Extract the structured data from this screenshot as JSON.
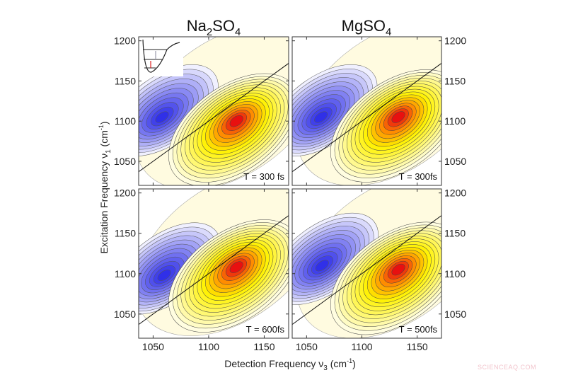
{
  "figure": {
    "xlabel": "Detection Frequency ν",
    "xlabel_sub": "3",
    "xlabel_unit": " (cm",
    "xlabel_sup": "-1",
    "xlabel_close": ")",
    "ylabel": "Excitation Frequency ν",
    "ylabel_sub": "1",
    "ylabel_unit": " (cm",
    "ylabel_sup": "-1",
    "ylabel_close": ")",
    "columns": [
      {
        "title_main": "Na",
        "title_sub": "2",
        "title_rest": "SO",
        "title_sub2": "4"
      },
      {
        "title_main": "MgSO",
        "title_sub": "4",
        "title_rest": "",
        "title_sub2": ""
      }
    ],
    "watermark": "SCIENCEAQ.COM"
  },
  "chart_data": [
    {
      "type": "contour",
      "column": "Na2SO4",
      "row": "top",
      "label": "T = 300 fs",
      "xlim": [
        1037,
        1172
      ],
      "ylim": [
        1020,
        1205
      ],
      "xticks": [
        "1050",
        "1100",
        "1150"
      ],
      "yticks": [
        "1050",
        "1100",
        "1150",
        "1200"
      ],
      "neg_peak": {
        "x": 1058,
        "y": 1105
      },
      "pos_peak": {
        "x": 1125,
        "y": 1100
      },
      "neg_levels": 11,
      "pos_levels": 16,
      "diagonal": true,
      "inset": "potential-well"
    },
    {
      "type": "contour",
      "column": "MgSO4",
      "row": "top",
      "label": "T = 300fs",
      "xlim": [
        1037,
        1172
      ],
      "ylim": [
        1020,
        1205
      ],
      "xticks": [
        "1050",
        "1100",
        "1150"
      ],
      "yticks": [
        "1050",
        "1100",
        "1150",
        "1200"
      ],
      "neg_peak": {
        "x": 1063,
        "y": 1105
      },
      "pos_peak": {
        "x": 1133,
        "y": 1105
      },
      "neg_levels": 12,
      "pos_levels": 16,
      "diagonal": true
    },
    {
      "type": "contour",
      "column": "Na2SO4",
      "row": "bottom",
      "label": "T = 600fs",
      "xlim": [
        1037,
        1172
      ],
      "ylim": [
        1020,
        1205
      ],
      "xticks": [
        "1050",
        "1100",
        "1150"
      ],
      "yticks": [
        "1050",
        "1100",
        "1150",
        "1200"
      ],
      "neg_peak": {
        "x": 1060,
        "y": 1098
      },
      "pos_peak": {
        "x": 1125,
        "y": 1108
      },
      "neg_levels": 12,
      "pos_levels": 16,
      "diagonal": true
    },
    {
      "type": "contour",
      "column": "MgSO4",
      "row": "bottom",
      "label": "T = 500fs",
      "xlim": [
        1037,
        1172
      ],
      "ylim": [
        1020,
        1205
      ],
      "xticks": [
        "1050",
        "1100",
        "1150"
      ],
      "yticks": [
        "1050",
        "1100",
        "1150",
        "1200"
      ],
      "neg_peak": {
        "x": 1064,
        "y": 1110
      },
      "pos_peak": {
        "x": 1133,
        "y": 1105
      },
      "neg_levels": 12,
      "pos_levels": 16,
      "diagonal": true
    }
  ],
  "colors": {
    "positive_max": "#e81010",
    "positive_mid": "#fff200",
    "positive_min": "#fffde0",
    "negative_max": "#3030e8",
    "negative_min": "#f0f0ff"
  }
}
